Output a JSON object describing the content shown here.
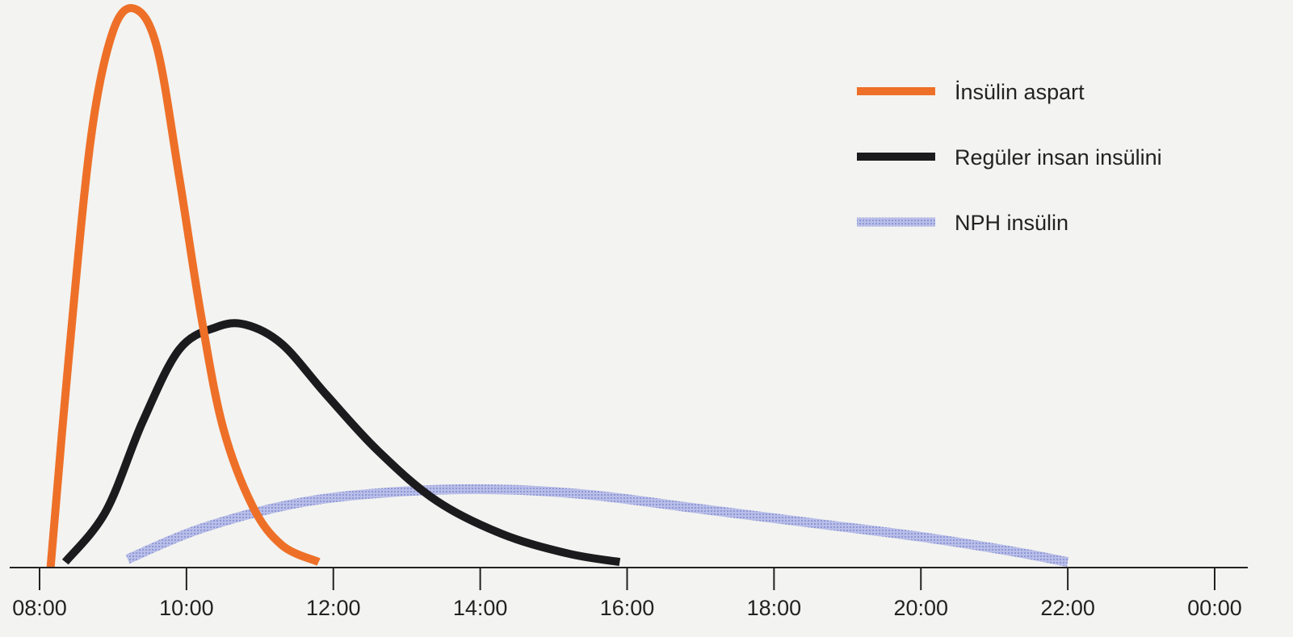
{
  "chart_data": {
    "type": "line",
    "title": "",
    "xlabel": "",
    "ylabel": "",
    "x_ticks": [
      "08:00",
      "10:00",
      "12:00",
      "14:00",
      "16:00",
      "18:00",
      "20:00",
      "22:00",
      "00:00"
    ],
    "xlim": [
      8,
      24
    ],
    "ylim": [
      0,
      100
    ],
    "grid": false,
    "legend_position": "top-right",
    "series": [
      {
        "name": "İnsülin aspart",
        "color": "#ee7028",
        "style": "solid",
        "points": [
          [
            8.15,
            0
          ],
          [
            8.4,
            38
          ],
          [
            8.7,
            77
          ],
          [
            9.0,
            96
          ],
          [
            9.3,
            100
          ],
          [
            9.6,
            93
          ],
          [
            9.9,
            70
          ],
          [
            10.2,
            45
          ],
          [
            10.5,
            25
          ],
          [
            10.9,
            11
          ],
          [
            11.3,
            4
          ],
          [
            11.8,
            1
          ]
        ]
      },
      {
        "name": "Regüler insan insülini",
        "color": "#1b1b1e",
        "style": "solid",
        "points": [
          [
            8.35,
            1
          ],
          [
            8.9,
            10
          ],
          [
            9.4,
            26
          ],
          [
            9.9,
            39
          ],
          [
            10.4,
            43
          ],
          [
            10.8,
            43.5
          ],
          [
            11.3,
            40
          ],
          [
            11.9,
            31
          ],
          [
            12.6,
            21
          ],
          [
            13.4,
            12
          ],
          [
            14.3,
            6
          ],
          [
            15.2,
            2.5
          ],
          [
            15.9,
            1
          ]
        ]
      },
      {
        "name": "NPH insülin",
        "color": "#a7aee0",
        "style": "dotted",
        "points": [
          [
            9.2,
            1.5
          ],
          [
            10.2,
            7
          ],
          [
            11.5,
            11.5
          ],
          [
            12.8,
            13.5
          ],
          [
            14.2,
            14
          ],
          [
            15.5,
            13
          ],
          [
            17.0,
            10.5
          ],
          [
            18.5,
            8
          ],
          [
            20.0,
            5.5
          ],
          [
            21.2,
            3
          ],
          [
            22.0,
            1
          ]
        ]
      }
    ]
  }
}
